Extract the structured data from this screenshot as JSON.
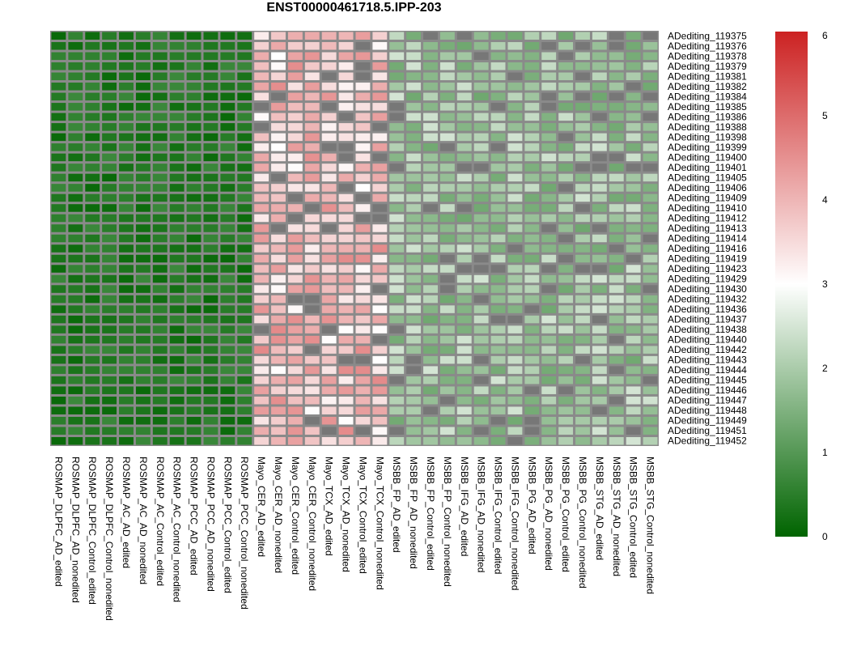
{
  "chart_data": {
    "type": "heatmap",
    "title": "ENST00000461718.5.IPP-203",
    "columns": [
      "ROSMAP_DLPFC_AD_edited",
      "ROSMAP_DLPFC_AD_nonedited",
      "ROSMAP_DLPFC_Control_edited",
      "ROSMAP_DLPFC_Control_nonedited",
      "ROSMAP_AC_AD_edited",
      "ROSMAP_AC_AD_nonedited",
      "ROSMAP_AC_Control_edited",
      "ROSMAP_AC_Control_nonedited",
      "ROSMAP_PCC_AD_edited",
      "ROSMAP_PCC_AD_nonedited",
      "ROSMAP_PCC_Control_edited",
      "ROSMAP_PCC_Control_nonedited",
      "Mayo_CER_AD_edited",
      "Mayo_CER_AD_nonedited",
      "Mayo_CER_Control_edited",
      "Mayo_CER_Control_nonedited",
      "Mayo_TCX_AD_edited",
      "Mayo_TCX_AD_nonedited",
      "Mayo_TCX_Control_edited",
      "Mayo_TCX_Control_nonedited",
      "MSBB_FP_AD_edited",
      "MSBB_FP_AD_nonedited",
      "MSBB_FP_Control_edited",
      "MSBB_FP_Control_nonedited",
      "MSBB_IFG_AD_edited",
      "MSBB_IFG_AD_nonedited",
      "MSBB_IFG_Control_edited",
      "MSBB_IFG_Control_nonedited",
      "MSBB_PG_AD_edited",
      "MSBB_PG_AD_nonedited",
      "MSBB_PG_Control_edited",
      "MSBB_PG_Control_nonedited",
      "MSBB_STG_AD_edited",
      "MSBB_STG_AD_nonedited",
      "MSBB_STG_Control_edited",
      "MSBB_STG_Control_nonedited"
    ],
    "rows": [
      "ADediting_119375",
      "ADediting_119376",
      "ADediting_119378",
      "ADediting_119379",
      "ADediting_119381",
      "ADediting_119382",
      "ADediting_119384",
      "ADediting_119385",
      "ADediting_119386",
      "ADediting_119388",
      "ADediting_119398",
      "ADediting_119399",
      "ADediting_119400",
      "ADediting_119401",
      "ADediting_119405",
      "ADediting_119406",
      "ADediting_119409",
      "ADediting_119410",
      "ADediting_119412",
      "ADediting_119413",
      "ADediting_119414",
      "ADediting_119416",
      "ADediting_119419",
      "ADediting_119423",
      "ADediting_119429",
      "ADediting_119430",
      "ADediting_119432",
      "ADediting_119436",
      "ADediting_119437",
      "ADediting_119438",
      "ADediting_119440",
      "ADediting_119442",
      "ADediting_119443",
      "ADediting_119444",
      "ADediting_119445",
      "ADediting_119446",
      "ADediting_119447",
      "ADediting_119448",
      "ADediting_119449",
      "ADediting_119451",
      "ADediting_119452"
    ],
    "group_base_values": {
      "ROSMAP": 0.4,
      "Mayo": 3.8,
      "MSBB": 1.9
    },
    "missing_color": "#777777",
    "color_scale": {
      "min": 0,
      "max": 6,
      "midpoint": 3,
      "low_color": "#006400",
      "mid_color": "#ffffff",
      "high_color": "#cc2222",
      "ticks": [
        "0",
        "1",
        "2",
        "3",
        "4",
        "5",
        "6"
      ]
    },
    "legend_placement": "right",
    "grid": false
  }
}
